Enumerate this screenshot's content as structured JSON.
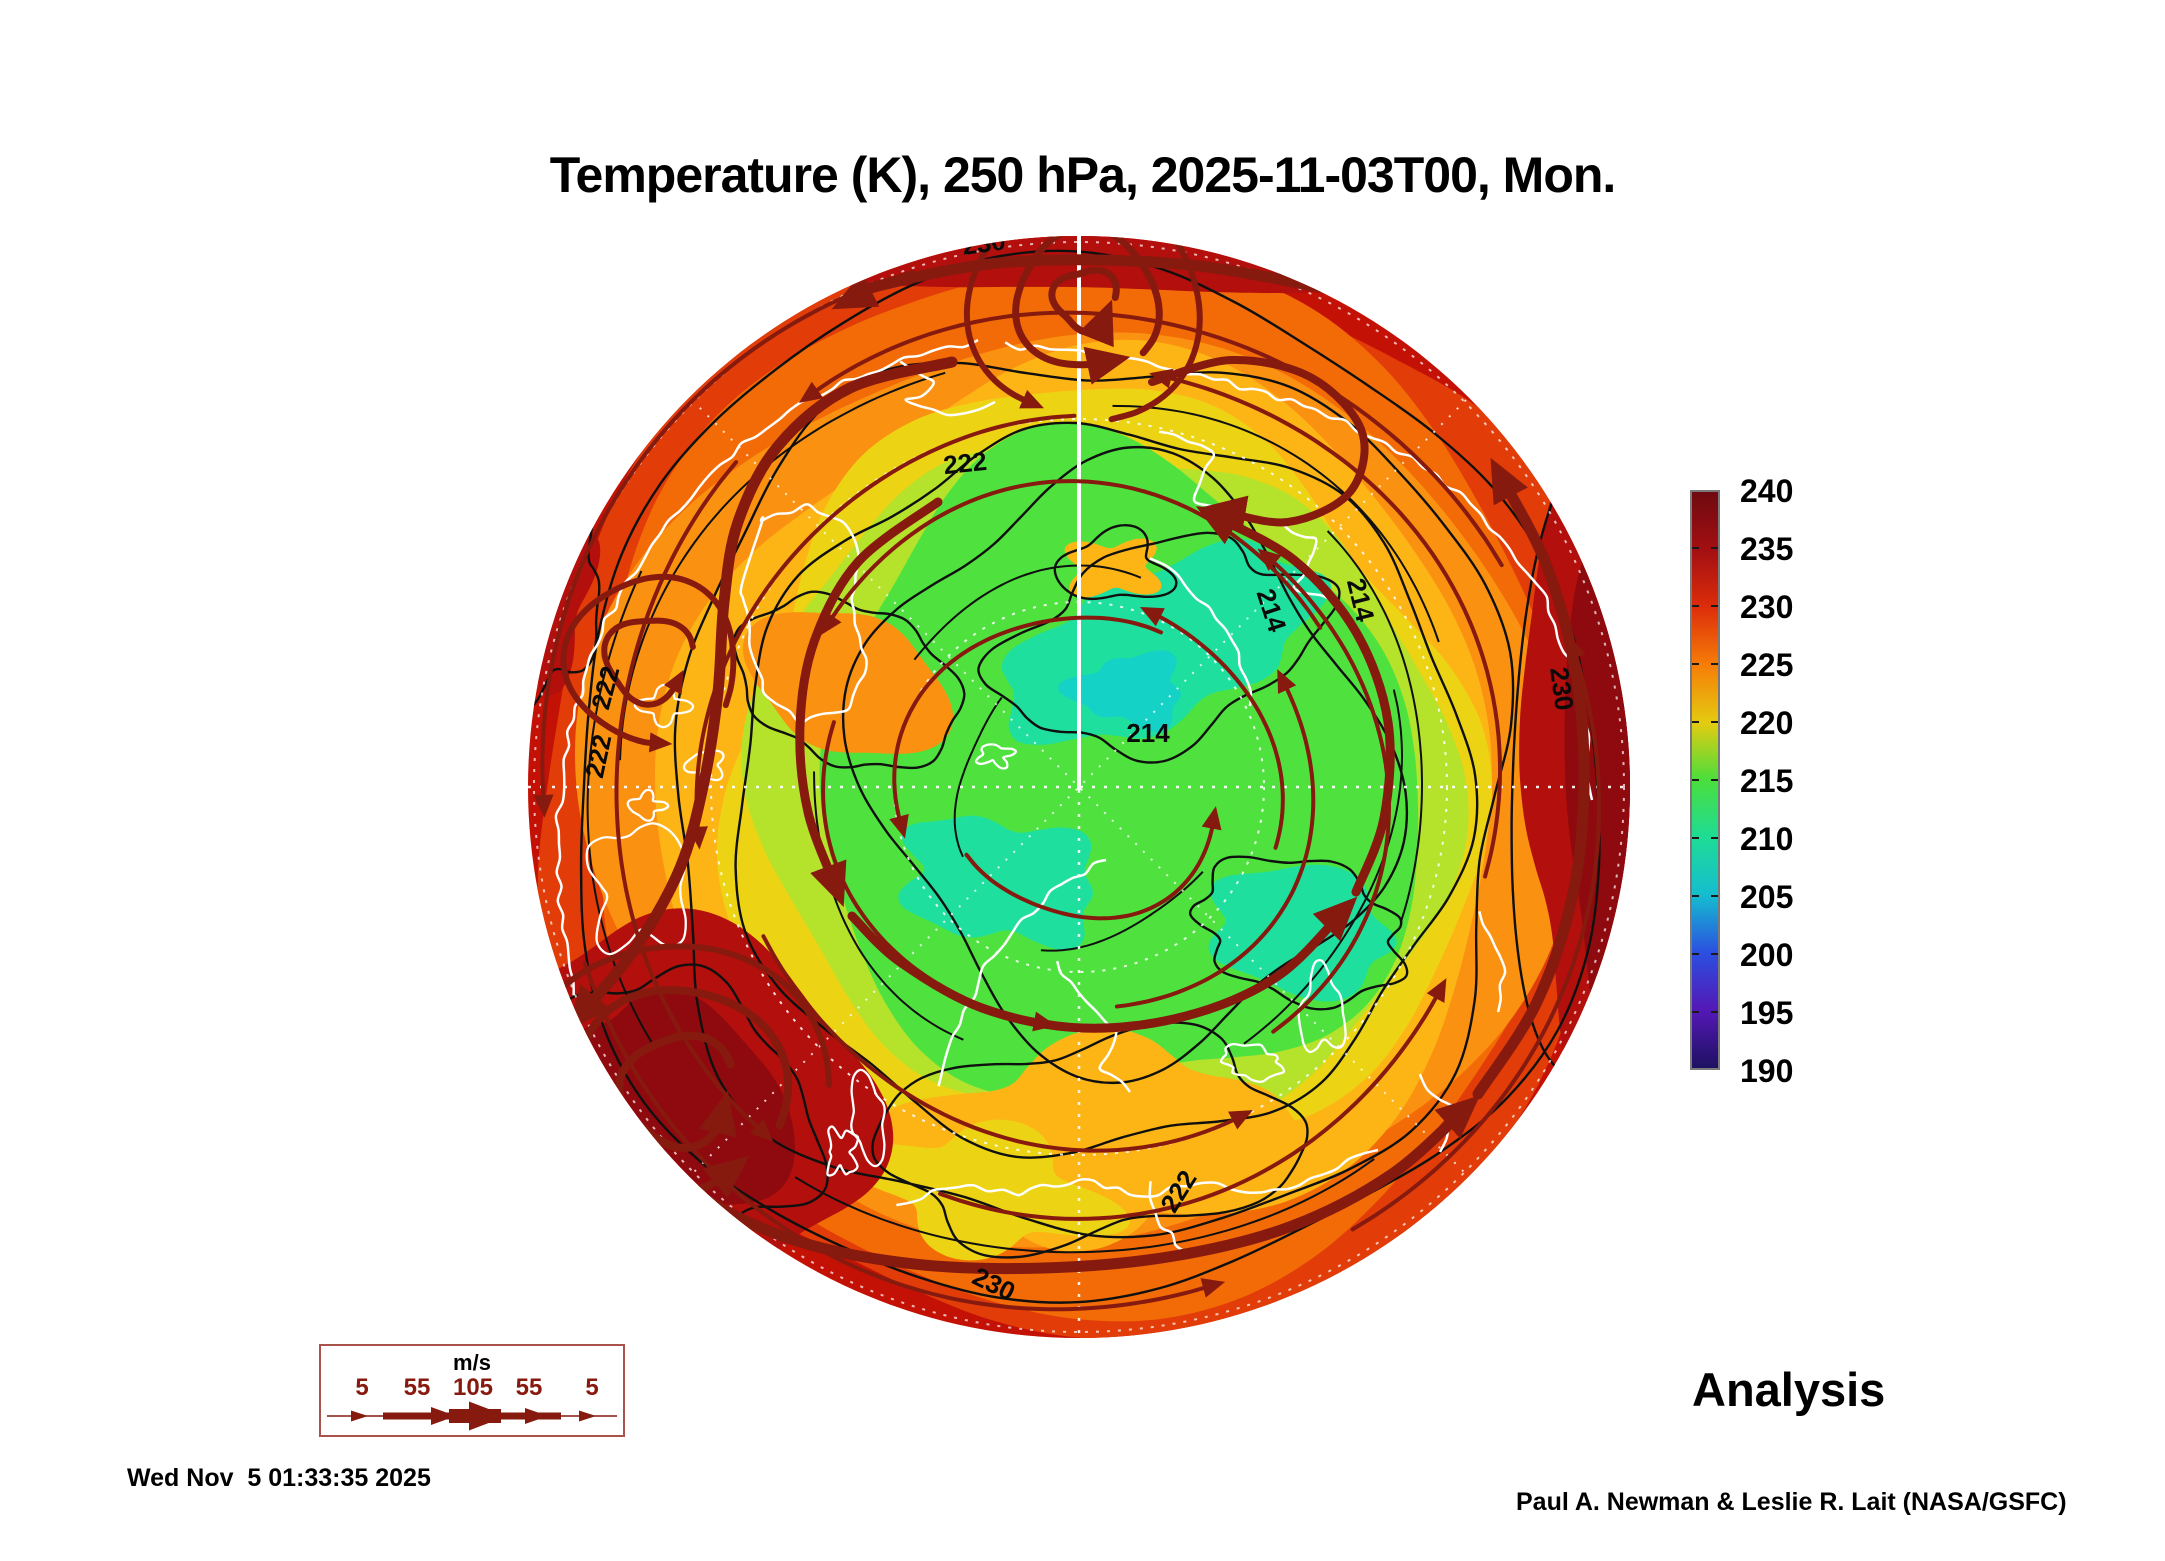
{
  "title": "Temperature (K), 250 hPa, 2025-11-03T00, Mon.",
  "analysis_label": "Analysis",
  "footer": {
    "timestamp": "Wed Nov  5 01:33:35 2025",
    "credit": "Paul A. Newman & Leslie R. Lait (NASA/GSFC)"
  },
  "colorbar": {
    "ticks": [
      "240",
      "235",
      "230",
      "225",
      "220",
      "215",
      "210",
      "205",
      "200",
      "195",
      "190"
    ],
    "stops": [
      "#6e0a10",
      "#a30f12",
      "#dd2d0a",
      "#f67d08",
      "#e5cb10",
      "#4ade3c",
      "#1edc96",
      "#15bdd0",
      "#2b4fe0",
      "#5418b6",
      "#1e1162"
    ]
  },
  "wind_legend": {
    "unit": "m/s",
    "speeds": [
      "5",
      "55",
      "105",
      "55",
      "5"
    ]
  },
  "map": {
    "contour_labels": [
      "230",
      "222",
      "214",
      "214",
      "222",
      "222",
      "230",
      "230",
      "222",
      "214"
    ],
    "palette": {
      "base_red": "#c41106",
      "red_orange": "#e23d08",
      "orange_red": "#f26b07",
      "orange": "#fb9110",
      "amber": "#fdb515",
      "yellow": "#ecd414",
      "yellow_green": "#b5e22a",
      "green": "#4fe23f",
      "teal": "#1edf9e",
      "cyan": "#14d2c5",
      "dark_red": "#b30f0c",
      "darker_red": "#8f0a0e",
      "stream": "#871a0f",
      "contour": "#101010",
      "coast": "#ffffff",
      "legend_border": "#a8524a"
    }
  },
  "chart_data": {
    "type": "heatmap",
    "title": "Temperature (K), 250 hPa, 2025-11-03T00, Mon.",
    "variable": "Temperature",
    "units": "K",
    "pressure_level_hPa": 250,
    "valid_time": "2025-11-03T00",
    "weekday": "Mon.",
    "projection": "north-polar-stereographic",
    "colorbar_range_K": [
      190,
      240
    ],
    "colorbar_ticks_K": [
      240,
      235,
      230,
      225,
      220,
      215,
      210,
      205,
      200,
      195,
      190
    ],
    "contour_interval_K": 8,
    "labeled_contours_K": [
      214,
      222,
      230
    ],
    "wind_vector_legend_ms": [
      5,
      55,
      105,
      55,
      5
    ],
    "product": "Analysis",
    "pattern": {
      "polar_cold_pool_K": "206-216 over central Arctic (green/teal core)",
      "midlatitude_rim_K": "228-240 warm ring at map edge",
      "warm_maxima": [
        "lower-left limb ~238-240 K vortex",
        "right limb band ~236-240 K"
      ],
      "cold_minima": [
        "center-right teal pockets ~206-210 K"
      ],
      "flow": "cyclonic (counterclockwise) circumpolar jet with embedded vortices at top-center and lower-left"
    }
  }
}
